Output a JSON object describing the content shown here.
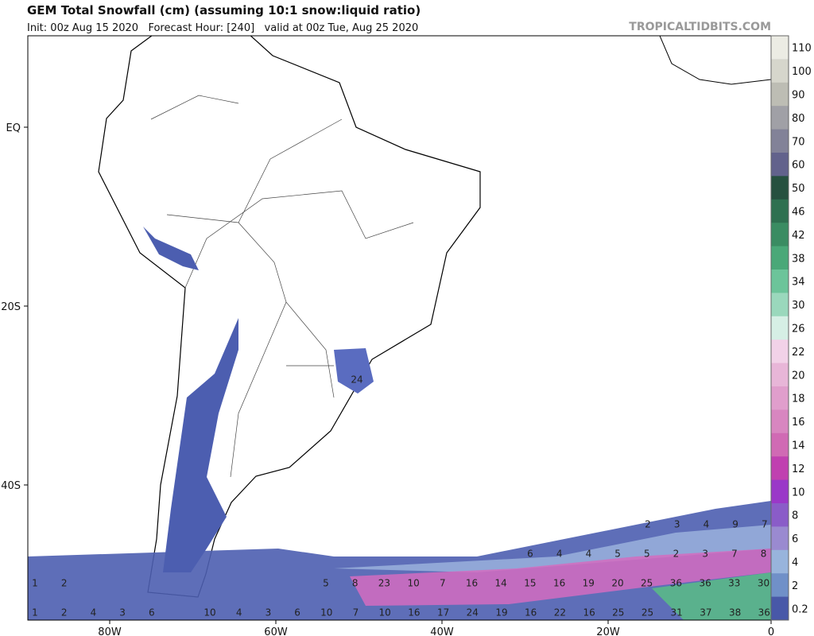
{
  "header": {
    "title": "GEM Total Snowfall (cm) (assuming 10:1 snow:liquid ratio)",
    "subtitle": "Init: 00z Aug 15 2020   Forecast Hour: [240]   valid at 00z Tue, Aug 25 2020",
    "brand": "TROPICALTIDBITS.COM"
  },
  "axes": {
    "x_labels": [
      "80W",
      "60W",
      "40W",
      "20W",
      "0"
    ],
    "y_labels": [
      "EQ",
      "20S",
      "40S"
    ]
  },
  "colorbar": {
    "levels": [
      110,
      100,
      90,
      80,
      70,
      60,
      50,
      46,
      42,
      38,
      34,
      30,
      26,
      22,
      20,
      18,
      16,
      14,
      12,
      10,
      8,
      6,
      4,
      2,
      0.2
    ],
    "colors": [
      "#ecece4",
      "#d6d6cc",
      "#bdbdb4",
      "#a0a0a6",
      "#828298",
      "#62628c",
      "#26503f",
      "#2e7050",
      "#3a8c62",
      "#4aa878",
      "#6cc49a",
      "#9ad8bc",
      "#d6efe5",
      "#f2d2e8",
      "#e8b6d8",
      "#e09ecc",
      "#d886c0",
      "#d06ab4",
      "#c040b0",
      "#9a38c8",
      "#8a5cc8",
      "#9a8ad0",
      "#98b4dc",
      "#7090c8",
      "#4858a8"
    ]
  },
  "snow_labels": {
    "rows": [
      [
        2,
        3,
        4,
        9,
        7
      ],
      [
        6,
        4,
        4,
        5,
        5,
        2,
        3,
        7,
        8
      ],
      [
        1,
        2
      ],
      [
        5,
        8,
        23,
        10,
        7,
        16,
        14,
        15,
        16,
        19,
        20,
        25,
        36,
        36,
        33,
        30
      ],
      [
        1,
        2,
        4,
        3,
        6
      ],
      [
        10,
        4,
        3,
        6,
        10,
        7,
        10,
        16,
        17,
        24,
        19,
        16,
        22,
        16,
        25,
        25,
        31,
        37,
        38,
        36
      ]
    ],
    "brazil": 24
  }
}
